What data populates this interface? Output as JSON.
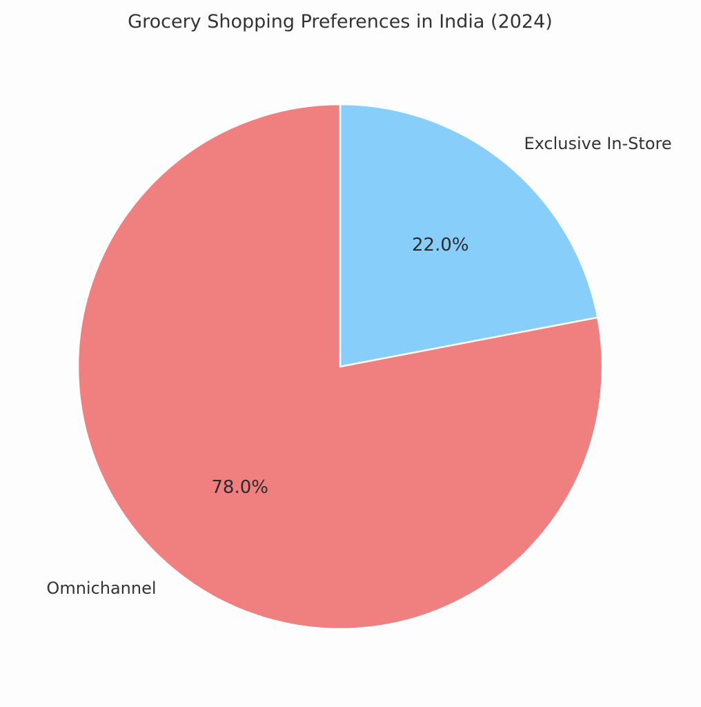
{
  "chart_data": {
    "type": "pie",
    "title": "Grocery Shopping Preferences in India (2024)",
    "slices": [
      {
        "label": "Exclusive In-Store",
        "value": 22.0,
        "pct_label": "22.0%",
        "color": "#87cefa"
      },
      {
        "label": "Omnichannel",
        "value": 78.0,
        "pct_label": "78.0%",
        "color": "#f08080"
      }
    ],
    "start_angle_deg": 90,
    "direction": "clockwise",
    "legend": "none"
  }
}
